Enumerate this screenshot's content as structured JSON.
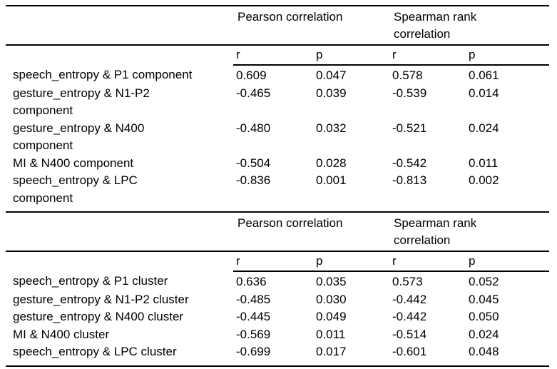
{
  "colors": {
    "text": "#000000",
    "background": "#ffffff",
    "rule": "#000000"
  },
  "tables": [
    {
      "name": "component-correlations",
      "group_headers": [
        "Pearson correlation",
        "Spearman rank\ncorrelation"
      ],
      "sub_headers": [
        "r",
        "p",
        "r",
        "p"
      ],
      "rows": [
        {
          "label": "speech_entropy & P1 component",
          "values": [
            "0.609",
            "0.047",
            "0.578",
            "0.061"
          ]
        },
        {
          "label": "gesture_entropy & N1-P2\ncomponent",
          "values": [
            "-0.465",
            "0.039",
            "-0.539",
            "0.014"
          ]
        },
        {
          "label": "gesture_entropy & N400\ncomponent",
          "values": [
            "-0.480",
            "0.032",
            "-0.521",
            "0.024"
          ]
        },
        {
          "label": "MI & N400 component",
          "values": [
            "-0.504",
            "0.028",
            "-0.542",
            "0.011"
          ]
        },
        {
          "label": "speech_entropy & LPC\ncomponent",
          "values": [
            "-0.836",
            "0.001",
            "-0.813",
            "0.002"
          ]
        }
      ]
    },
    {
      "name": "cluster-correlations",
      "group_headers": [
        "Pearson correlation",
        "Spearman rank\ncorrelation"
      ],
      "sub_headers": [
        "r",
        "p",
        "r",
        "p"
      ],
      "rows": [
        {
          "label": "speech_entropy & P1 cluster",
          "values": [
            "0.636",
            "0.035",
            "0.573",
            "0.052"
          ]
        },
        {
          "label": "gesture_entropy & N1-P2 cluster",
          "values": [
            "-0.485",
            "0.030",
            "-0.442",
            "0.045"
          ]
        },
        {
          "label": "gesture_entropy & N400 cluster",
          "values": [
            "-0.445",
            "0.049",
            "-0.442",
            "0.050"
          ]
        },
        {
          "label": "MI & N400 cluster",
          "values": [
            "-0.569",
            "0.011",
            "-0.514",
            "0.024"
          ]
        },
        {
          "label": "speech_entropy & LPC cluster",
          "values": [
            "-0.699",
            "0.017",
            "-0.601",
            "0.048"
          ]
        }
      ]
    }
  ]
}
